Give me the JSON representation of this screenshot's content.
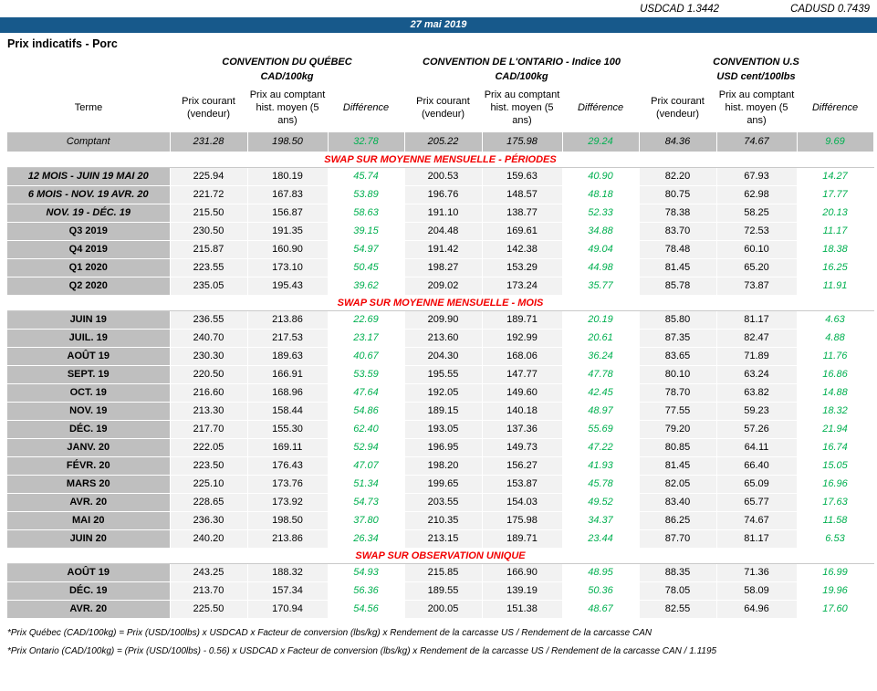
{
  "header": {
    "usdcad": "USDCAD 1.3442",
    "cadusd": "CADUSD 0.7439",
    "date": "27 mai 2019",
    "title": "Prix indicatifs - Porc"
  },
  "colors": {
    "banner_blue": "#17598B",
    "row_gray": "#BFBFBF",
    "cell_gray": "#F2F2F2",
    "diff_green": "#00B050",
    "section_red": "#F20000"
  },
  "groups": [
    {
      "name": "CONVENTION DU QUÉBEC",
      "unit": "CAD/100kg"
    },
    {
      "name": "CONVENTION DE L'ONTARIO - Indice 100",
      "unit": "CAD/100kg"
    },
    {
      "name": "CONVENTION U.S",
      "unit": "USD cent/100lbs"
    }
  ],
  "columns": {
    "terme": "Terme",
    "current": "Prix courant (vendeur)",
    "hist": "Prix au comptant hist. moyen (5 ans)",
    "diff": "Différence"
  },
  "comptant": {
    "label": "Comptant",
    "values": [
      "231.28",
      "198.50",
      "32.78",
      "205.22",
      "175.98",
      "29.24",
      "84.36",
      "74.67",
      "9.69"
    ]
  },
  "sections": [
    {
      "title": "SWAP SUR MOYENNE MENSUELLE - PÉRIODES",
      "rows": [
        {
          "terme": "12 MOIS -  JUIN 19 MAI 20",
          "italic": true,
          "values": [
            "225.94",
            "180.19",
            "45.74",
            "200.53",
            "159.63",
            "40.90",
            "82.20",
            "67.93",
            "14.27"
          ]
        },
        {
          "terme": "6 MOIS -  NOV. 19 AVR. 20",
          "italic": true,
          "values": [
            "221.72",
            "167.83",
            "53.89",
            "196.76",
            "148.57",
            "48.18",
            "80.75",
            "62.98",
            "17.77"
          ]
        },
        {
          "terme": "NOV. 19 -  DÉC. 19",
          "italic": true,
          "values": [
            "215.50",
            "156.87",
            "58.63",
            "191.10",
            "138.77",
            "52.33",
            "78.38",
            "58.25",
            "20.13"
          ]
        },
        {
          "terme": "Q3 2019",
          "italic": false,
          "values": [
            "230.50",
            "191.35",
            "39.15",
            "204.48",
            "169.61",
            "34.88",
            "83.70",
            "72.53",
            "11.17"
          ]
        },
        {
          "terme": "Q4 2019",
          "italic": false,
          "values": [
            "215.87",
            "160.90",
            "54.97",
            "191.42",
            "142.38",
            "49.04",
            "78.48",
            "60.10",
            "18.38"
          ]
        },
        {
          "terme": "Q1 2020",
          "italic": false,
          "values": [
            "223.55",
            "173.10",
            "50.45",
            "198.27",
            "153.29",
            "44.98",
            "81.45",
            "65.20",
            "16.25"
          ]
        },
        {
          "terme": "Q2 2020",
          "italic": false,
          "values": [
            "235.05",
            "195.43",
            "39.62",
            "209.02",
            "173.24",
            "35.77",
            "85.78",
            "73.87",
            "11.91"
          ]
        }
      ]
    },
    {
      "title": "SWAP SUR MOYENNE MENSUELLE - MOIS",
      "rows": [
        {
          "terme": "JUIN 19",
          "italic": false,
          "values": [
            "236.55",
            "213.86",
            "22.69",
            "209.90",
            "189.71",
            "20.19",
            "85.80",
            "81.17",
            "4.63"
          ]
        },
        {
          "terme": "JUIL. 19",
          "italic": false,
          "values": [
            "240.70",
            "217.53",
            "23.17",
            "213.60",
            "192.99",
            "20.61",
            "87.35",
            "82.47",
            "4.88"
          ]
        },
        {
          "terme": "AOÛT 19",
          "italic": false,
          "values": [
            "230.30",
            "189.63",
            "40.67",
            "204.30",
            "168.06",
            "36.24",
            "83.65",
            "71.89",
            "11.76"
          ]
        },
        {
          "terme": "SEPT. 19",
          "italic": false,
          "values": [
            "220.50",
            "166.91",
            "53.59",
            "195.55",
            "147.77",
            "47.78",
            "80.10",
            "63.24",
            "16.86"
          ]
        },
        {
          "terme": "OCT. 19",
          "italic": false,
          "values": [
            "216.60",
            "168.96",
            "47.64",
            "192.05",
            "149.60",
            "42.45",
            "78.70",
            "63.82",
            "14.88"
          ]
        },
        {
          "terme": "NOV. 19",
          "italic": false,
          "values": [
            "213.30",
            "158.44",
            "54.86",
            "189.15",
            "140.18",
            "48.97",
            "77.55",
            "59.23",
            "18.32"
          ]
        },
        {
          "terme": "DÉC. 19",
          "italic": false,
          "values": [
            "217.70",
            "155.30",
            "62.40",
            "193.05",
            "137.36",
            "55.69",
            "79.20",
            "57.26",
            "21.94"
          ]
        },
        {
          "terme": "JANV. 20",
          "italic": false,
          "values": [
            "222.05",
            "169.11",
            "52.94",
            "196.95",
            "149.73",
            "47.22",
            "80.85",
            "64.11",
            "16.74"
          ]
        },
        {
          "terme": "FÉVR. 20",
          "italic": false,
          "values": [
            "223.50",
            "176.43",
            "47.07",
            "198.20",
            "156.27",
            "41.93",
            "81.45",
            "66.40",
            "15.05"
          ]
        },
        {
          "terme": "MARS 20",
          "italic": false,
          "values": [
            "225.10",
            "173.76",
            "51.34",
            "199.65",
            "153.87",
            "45.78",
            "82.05",
            "65.09",
            "16.96"
          ]
        },
        {
          "terme": "AVR. 20",
          "italic": false,
          "values": [
            "228.65",
            "173.92",
            "54.73",
            "203.55",
            "154.03",
            "49.52",
            "83.40",
            "65.77",
            "17.63"
          ]
        },
        {
          "terme": "MAI 20",
          "italic": false,
          "values": [
            "236.30",
            "198.50",
            "37.80",
            "210.35",
            "175.98",
            "34.37",
            "86.25",
            "74.67",
            "11.58"
          ]
        },
        {
          "terme": "JUIN 20",
          "italic": false,
          "values": [
            "240.20",
            "213.86",
            "26.34",
            "213.15",
            "189.71",
            "23.44",
            "87.70",
            "81.17",
            "6.53"
          ]
        }
      ]
    },
    {
      "title": "SWAP SUR OBSERVATION UNIQUE",
      "rows": [
        {
          "terme": "AOÛT 19",
          "italic": false,
          "values": [
            "243.25",
            "188.32",
            "54.93",
            "215.85",
            "166.90",
            "48.95",
            "88.35",
            "71.36",
            "16.99"
          ]
        },
        {
          "terme": "DÉC. 19",
          "italic": false,
          "values": [
            "213.70",
            "157.34",
            "56.36",
            "189.55",
            "139.19",
            "50.36",
            "78.05",
            "58.09",
            "19.96"
          ]
        },
        {
          "terme": "AVR. 20",
          "italic": false,
          "values": [
            "225.50",
            "170.94",
            "54.56",
            "200.05",
            "151.38",
            "48.67",
            "82.55",
            "64.96",
            "17.60"
          ]
        }
      ]
    }
  ],
  "footnotes": [
    "*Prix Québec (CAD/100kg) = Prix (USD/100lbs) x USDCAD x Facteur de conversion (lbs/kg) x Rendement de la carcasse US / Rendement de la carcasse CAN",
    "*Prix Ontario (CAD/100kg) = (Prix (USD/100lbs) - 0.56) x USDCAD x Facteur de conversion (lbs/kg) x Rendement de la carcasse US / Rendement de la carcasse CAN / 1.1195"
  ]
}
